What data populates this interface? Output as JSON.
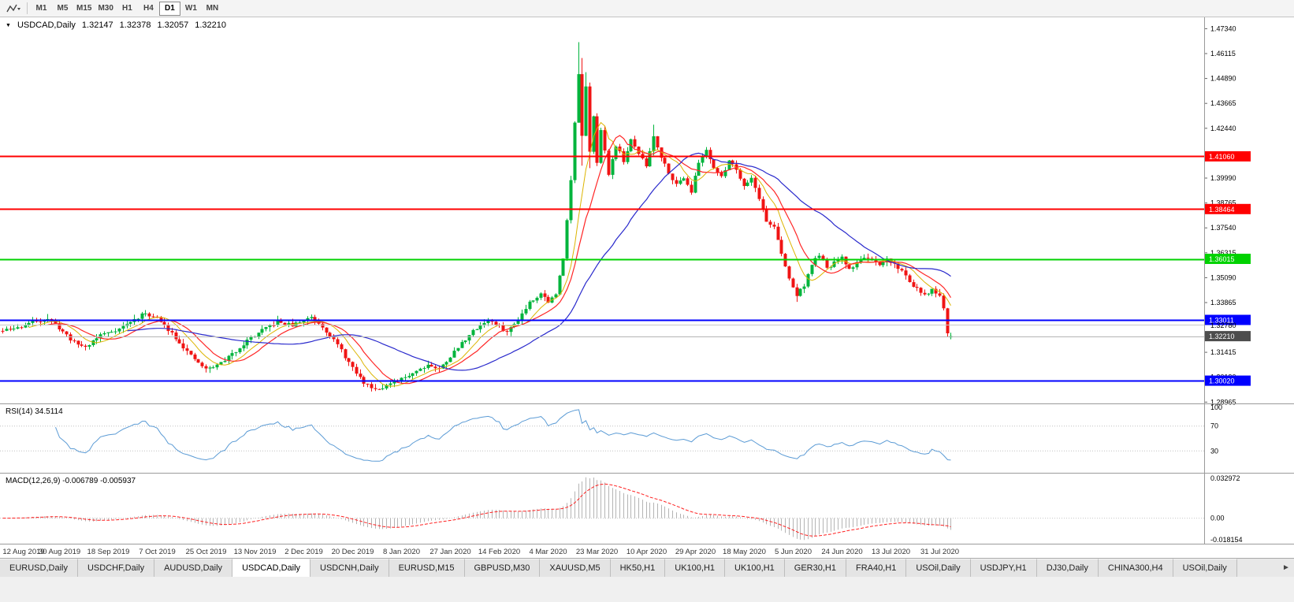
{
  "toolbar": {
    "chart_type_icon": "line-chart-icon",
    "periods": [
      "M1",
      "M5",
      "M15",
      "M30",
      "H1",
      "H4",
      "D1",
      "W1",
      "MN"
    ],
    "active_period": "D1"
  },
  "chart_title": {
    "collapse_icon": "triangle-down",
    "symbol": "USDCAD,Daily",
    "open": "1.32147",
    "high": "1.32378",
    "low": "1.32057",
    "close": "1.32210"
  },
  "chart_data": {
    "type": "candlestick",
    "symbol": "USDCAD",
    "timeframe": "Daily",
    "last_ohlc": {
      "open": 1.32147,
      "high": 1.32378,
      "low": 1.32057,
      "close": 1.3221
    },
    "colors": {
      "up": "#00b43c",
      "down": "#f01414",
      "background": "#ffffff"
    },
    "y_axis": {
      "min": 1.289,
      "max": 1.479,
      "ticks": [
        "1.47340",
        "1.46115",
        "1.44890",
        "1.43665",
        "1.42440",
        "1.39990",
        "1.38765",
        "1.37540",
        "1.36315",
        "1.35090",
        "1.33865",
        "1.31415",
        "1.30190",
        "1.28965"
      ]
    },
    "x_axis": {
      "labels": [
        "12 Aug 2019",
        "30 Aug 2019",
        "18 Sep 2019",
        "7 Oct 2019",
        "25 Oct 2019",
        "13 Nov 2019",
        "2 Dec 2019",
        "20 Dec 2019",
        "8 Jan 2020",
        "27 Jan 2020",
        "14 Feb 2020",
        "4 Mar 2020",
        "23 Mar 2020",
        "10 Apr 2020",
        "29 Apr 2020",
        "18 May 2020",
        "5 Jun 2020",
        "24 Jun 2020",
        "13 Jul 2020",
        "31 Jul 2020"
      ],
      "first_label_candle_index": 2,
      "candle_step_per_label": 13
    },
    "levels": [
      {
        "price": 1.4106,
        "label": "1.41060",
        "color": "#ff0000",
        "width": 2,
        "badge": true
      },
      {
        "price": 1.38464,
        "label": "1.38464",
        "color": "#ff0000",
        "width": 2,
        "badge": true
      },
      {
        "price": 1.36015,
        "label": "1.36015",
        "color": "#00d200",
        "width": 2,
        "badge": true
      },
      {
        "price": 1.33011,
        "label": "1.33011",
        "color": "#0000ff",
        "width": 2,
        "badge": true
      },
      {
        "price": 1.3002,
        "label": "1.30020",
        "color": "#0000ff",
        "width": 2,
        "badge": true
      },
      {
        "price": 1.3278,
        "label": "1.32780",
        "color": "#c8c8c8",
        "width": 1,
        "badge": false
      }
    ],
    "current_price": {
      "value": 1.3221,
      "label": "1.32210",
      "line_color": "#b4b4b4",
      "badge_color": "#4d4d4d"
    },
    "moving_averages": [
      {
        "period": 8,
        "color": "#dcb400",
        "width": 1
      },
      {
        "period": 13,
        "color": "#ff2626",
        "width": 1.2
      },
      {
        "period": 34,
        "color": "#2929cc",
        "width": 1.2
      }
    ],
    "candles": {
      "count": 253,
      "right_shift": 67,
      "seed": 11,
      "noise": 0.0009,
      "wick": 0.0022,
      "anchors": [
        [
          0,
          1.3247
        ],
        [
          4,
          1.3262
        ],
        [
          8,
          1.3292
        ],
        [
          12,
          1.3308
        ],
        [
          15,
          1.3262
        ],
        [
          19,
          1.319
        ],
        [
          22,
          1.3168
        ],
        [
          26,
          1.3228
        ],
        [
          31,
          1.3258
        ],
        [
          35,
          1.3302
        ],
        [
          38,
          1.3335
        ],
        [
          41,
          1.3308
        ],
        [
          45,
          1.3238
        ],
        [
          50,
          1.3122
        ],
        [
          54,
          1.3058
        ],
        [
          57,
          1.3078
        ],
        [
          61,
          1.3132
        ],
        [
          65,
          1.32
        ],
        [
          69,
          1.3248
        ],
        [
          73,
          1.3292
        ],
        [
          77,
          1.3274
        ],
        [
          80,
          1.3298
        ],
        [
          82,
          1.3318
        ],
        [
          85,
          1.327
        ],
        [
          89,
          1.3178
        ],
        [
          93,
          1.3062
        ],
        [
          96,
          1.2992
        ],
        [
          99,
          1.2962
        ],
        [
          102,
          1.2978
        ],
        [
          105,
          1.2998
        ],
        [
          109,
          1.3042
        ],
        [
          113,
          1.3082
        ],
        [
          116,
          1.3058
        ],
        [
          119,
          1.3122
        ],
        [
          123,
          1.3208
        ],
        [
          126,
          1.3262
        ],
        [
          129,
          1.33
        ],
        [
          132,
          1.3268
        ],
        [
          134,
          1.324
        ],
        [
          137,
          1.3304
        ],
        [
          140,
          1.339
        ],
        [
          143,
          1.3432
        ],
        [
          145,
          1.3392
        ],
        [
          147,
          1.3424
        ],
        [
          149,
          1.3608
        ],
        [
          151,
          1.3992
        ],
        [
          152,
          1.4268
        ],
        [
          153,
          1.4512
        ],
        [
          154,
          1.4202
        ],
        [
          155,
          1.4442
        ],
        [
          156,
          1.4122
        ],
        [
          157,
          1.4312
        ],
        [
          158,
          1.4082
        ],
        [
          159,
          1.4232
        ],
        [
          161,
          1.4022
        ],
        [
          163,
          1.4162
        ],
        [
          165,
          1.4084
        ],
        [
          167,
          1.4182
        ],
        [
          169,
          1.4122
        ],
        [
          171,
          1.4058
        ],
        [
          173,
          1.4208
        ],
        [
          175,
          1.4104
        ],
        [
          177,
          1.403
        ],
        [
          179,
          1.3964
        ],
        [
          181,
          1.4006
        ],
        [
          183,
          1.3934
        ],
        [
          185,
          1.4074
        ],
        [
          187,
          1.414
        ],
        [
          189,
          1.4054
        ],
        [
          191,
          1.4
        ],
        [
          193,
          1.409
        ],
        [
          195,
          1.4042
        ],
        [
          197,
          1.3964
        ],
        [
          199,
          1.4
        ],
        [
          201,
          1.3902
        ],
        [
          203,
          1.3784
        ],
        [
          205,
          1.3762
        ],
        [
          207,
          1.3622
        ],
        [
          209,
          1.3504
        ],
        [
          211,
          1.3422
        ],
        [
          213,
          1.3474
        ],
        [
          215,
          1.3572
        ],
        [
          217,
          1.3624
        ],
        [
          219,
          1.355
        ],
        [
          221,
          1.3584
        ],
        [
          223,
          1.3604
        ],
        [
          225,
          1.355
        ],
        [
          227,
          1.3582
        ],
        [
          229,
          1.3614
        ],
        [
          231,
          1.359
        ],
        [
          233,
          1.3564
        ],
        [
          235,
          1.36
        ],
        [
          237,
          1.3574
        ],
        [
          239,
          1.3542
        ],
        [
          241,
          1.349
        ],
        [
          243,
          1.3454
        ],
        [
          245,
          1.3418
        ],
        [
          247,
          1.345
        ],
        [
          248,
          1.3438
        ],
        [
          249,
          1.3412
        ],
        [
          250,
          1.3352
        ],
        [
          251,
          1.3228
        ],
        [
          252,
          1.3221
        ]
      ],
      "overrides": {
        "12": {
          "h": 1.333
        },
        "54": {
          "l": 1.3042
        },
        "99": {
          "l": 1.2951
        },
        "153": {
          "h": 1.4668,
          "l": 1.431
        },
        "154": {
          "h": 1.459,
          "l": 1.406
        },
        "155": {
          "h": 1.452
        },
        "156": {
          "l": 1.4048
        },
        "173": {
          "h": 1.4262
        },
        "211": {
          "l": 1.339
        },
        "252": {
          "o": 1.32147,
          "h": 1.32378,
          "l": 1.32057,
          "c": 1.3221
        }
      }
    },
    "indicators": {
      "rsi": {
        "label": "RSI(14) 34.5114",
        "period": 14,
        "value": 34.5114,
        "levels": [
          70,
          30
        ],
        "scale_labels": [
          "100",
          "70",
          "30"
        ],
        "color": "#5b9bd5"
      },
      "macd": {
        "label": "MACD(12,26,9) -0.006789 -0.005937",
        "fast": 12,
        "slow": 26,
        "signal_period": 9,
        "macd_value": -0.006789,
        "signal_value": -0.005937,
        "scale_labels": [
          "0.032972",
          "0.00",
          "-0.018154"
        ],
        "histogram_color": "#b4b4b4",
        "signal_color": "#ff2020"
      }
    }
  },
  "tabs": {
    "items": [
      "EURUSD,Daily",
      "USDCHF,Daily",
      "AUDUSD,Daily",
      "USDCAD,Daily",
      "USDCNH,Daily",
      "EURUSD,M15",
      "GBPUSD,M30",
      "XAUUSD,M5",
      "HK50,H1",
      "UK100,H1",
      "UK100,H1",
      "GER30,H1",
      "FRA40,H1",
      "USOil,Daily",
      "USDJPY,H1",
      "DJ30,Daily",
      "CHINA300,H4",
      "USOil,Daily"
    ],
    "active_index": 3,
    "scroll_right_icon": "chevron-right"
  }
}
